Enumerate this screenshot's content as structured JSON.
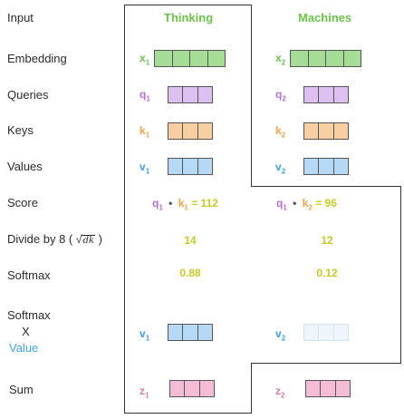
{
  "row_labels": {
    "input": "Input",
    "embedding": "Embedding",
    "queries": "Queries",
    "keys": "Keys",
    "values": "Values",
    "score": "Score",
    "divide_prefix": "Divide by 8 (",
    "divide_sqrt": "dk",
    "divide_suffix": ")",
    "softmax": "Softmax",
    "softmax_x_1": "Softmax",
    "softmax_x_2": "X",
    "softmax_x_3": "Value",
    "sum": "Sum"
  },
  "words": [
    "Thinking",
    "Machines"
  ],
  "symbols": {
    "x1": "x",
    "x2": "x",
    "q1": "q",
    "q2": "q",
    "k1": "k",
    "k2": "k",
    "v1": "v",
    "v2": "v",
    "z1": "z",
    "z2": "z",
    "sub1": "1",
    "sub2": "2"
  },
  "scores": {
    "s1_value": "112",
    "s2_value": "96",
    "bullet": "•",
    "equals": "="
  },
  "divided": [
    "14",
    "12"
  ],
  "softmax": [
    "0.88",
    "0.12"
  ],
  "colors": {
    "embedding": "#a6dd96",
    "query": "#dcc1f0",
    "key": "#f8cfa3",
    "value": "#b6daf5",
    "value_faded": "#eef5fc",
    "sum": "#f5bcd5",
    "word": "#6cc24a",
    "number": "#c9c82a"
  }
}
